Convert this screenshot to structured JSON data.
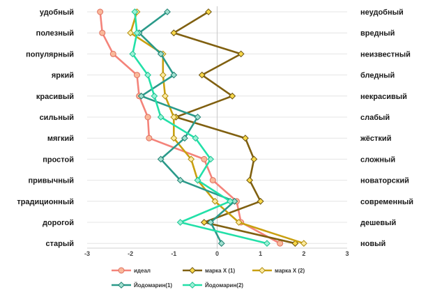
{
  "chart_data": {
    "type": "line",
    "orientation": "horizontal-profile",
    "left_labels": [
      "удобный",
      "полезный",
      "популярный",
      "яркий",
      "красивый",
      "сильный",
      "мягкий",
      "простой",
      "привычный",
      "традиционный",
      "дорогой",
      "старый"
    ],
    "right_labels": [
      "неудобный",
      "вредный",
      "неизвестный",
      "бледный",
      "некрасивый",
      "слабый",
      "жёсткий",
      "сложный",
      "новаторский",
      "современный",
      "дешевый",
      "новый"
    ],
    "xlim": [
      -3,
      3
    ],
    "xticks": [
      -3,
      -2,
      -1,
      0,
      1,
      2,
      3
    ],
    "grid": true,
    "legend_position": "bottom",
    "series": [
      {
        "name": "идеал",
        "color": "#f4837a",
        "stroke": "#e07060",
        "fill": "#f9b89a",
        "marker": "circle",
        "values": [
          -2.7,
          -2.65,
          -2.4,
          -1.85,
          -1.8,
          -1.6,
          -1.57,
          -0.3,
          -0.1,
          0.45,
          0.55,
          1.45
        ]
      },
      {
        "name": "марка X (1)",
        "color": "#806010",
        "stroke": "#6b500c",
        "fill": "#f7d84a",
        "marker": "diamond",
        "values": [
          -0.2,
          -1.0,
          0.55,
          -0.35,
          0.35,
          -0.95,
          0.65,
          0.85,
          0.75,
          1.0,
          -0.3,
          1.8
        ]
      },
      {
        "name": "марка X (2)",
        "color": "#c9a010",
        "stroke": "#b08a08",
        "fill": "#fbeaa0",
        "marker": "diamond",
        "values": [
          -1.85,
          -2.0,
          -1.25,
          -1.25,
          -1.2,
          -1.0,
          -1.0,
          -0.6,
          -0.45,
          -0.05,
          0.5,
          2.0
        ]
      },
      {
        "name": "Йодомарин(1)",
        "color": "#2a9a8a",
        "stroke": "#1e7d6f",
        "fill": "#9fe0cf",
        "marker": "diamond",
        "values": [
          -1.15,
          -1.8,
          -1.3,
          -1.0,
          -1.75,
          -0.45,
          -0.75,
          -1.3,
          -0.85,
          0.4,
          -0.15,
          0.1
        ]
      },
      {
        "name": "Йодомарин(2)",
        "color": "#22e0a8",
        "stroke": "#16c490",
        "fill": "#9af0d6",
        "marker": "diamond",
        "values": [
          -1.9,
          -1.85,
          -1.95,
          -1.6,
          -1.45,
          -1.3,
          -0.5,
          -0.15,
          -0.45,
          0.3,
          -0.85,
          1.15
        ]
      }
    ]
  }
}
